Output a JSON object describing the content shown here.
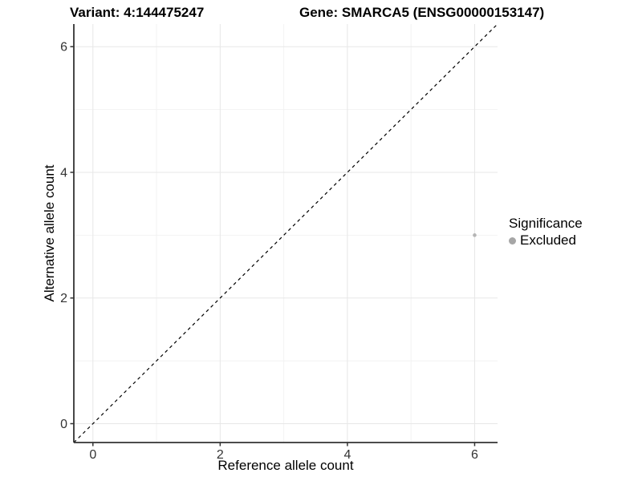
{
  "chart_data": {
    "type": "scatter",
    "title_variant": "Variant: 4:144475247",
    "title_gene": "Gene: SMARCA5 (ENSG00000153147)",
    "xlabel": "Reference allele count",
    "ylabel": "Alternative allele count",
    "xlim": [
      -0.3,
      6.36
    ],
    "ylim": [
      -0.3,
      6.36
    ],
    "x_major_ticks": [
      0,
      2,
      4,
      6
    ],
    "y_major_ticks": [
      0,
      2,
      4,
      6
    ],
    "x_minor_gridlines": [
      1,
      3,
      5
    ],
    "y_minor_gridlines": [
      1,
      3,
      5
    ],
    "grid": true,
    "reference_line": {
      "type": "identity y=x",
      "style": "dashed",
      "color": "#000000"
    },
    "series": [
      {
        "name": "Excluded",
        "points": [
          {
            "x": 6,
            "y": 3
          }
        ],
        "color": "#b5b5b5",
        "marker_radius": 2.3
      }
    ],
    "legend": {
      "title": "Significance",
      "position": "right",
      "items": [
        {
          "label": "Excluded",
          "swatch_color": "#a6a6a6"
        }
      ]
    },
    "colors": {
      "background": "#ffffff",
      "grid_major": "#e7e7e7",
      "grid_minor": "#f2f2f2",
      "axis_line": "#333333",
      "tick_text": "#333333"
    }
  }
}
